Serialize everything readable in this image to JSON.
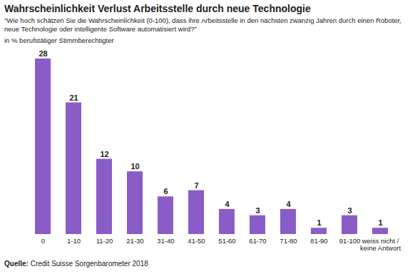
{
  "chart_data": {
    "type": "bar",
    "title": "Wahrscheinlichkeit Verlust Arbeitsstelle durch neue Technologie",
    "subtitle": "\"Wie hoch schätzen Sie die Wahrscheinlichkeit (0-100), dass ihre Arbeitsstelle in den nächsten zwanzig Jahren durch einen Roboter, neue Technologie oder intelligente Software automatisiert wird?\"",
    "y_label": "in % berufstätiger Stimmberechtigter",
    "caption": "Quelle: Credit Suisse Sorgenbarometer 2018",
    "categories": [
      "0",
      "1-10",
      "11-20",
      "21-30",
      "31-40",
      "41-50",
      "51-60",
      "61-70",
      "71-80",
      "81-90",
      "91-100",
      "weiss nicht / keine Antwort"
    ],
    "values": [
      28,
      21,
      12,
      10,
      6,
      7,
      4,
      3,
      4,
      1,
      3,
      1
    ],
    "color": "#8a5cc8",
    "ylim": [
      0,
      28
    ],
    "data_labels": true,
    "tick_labels": "x",
    "grid": false
  }
}
